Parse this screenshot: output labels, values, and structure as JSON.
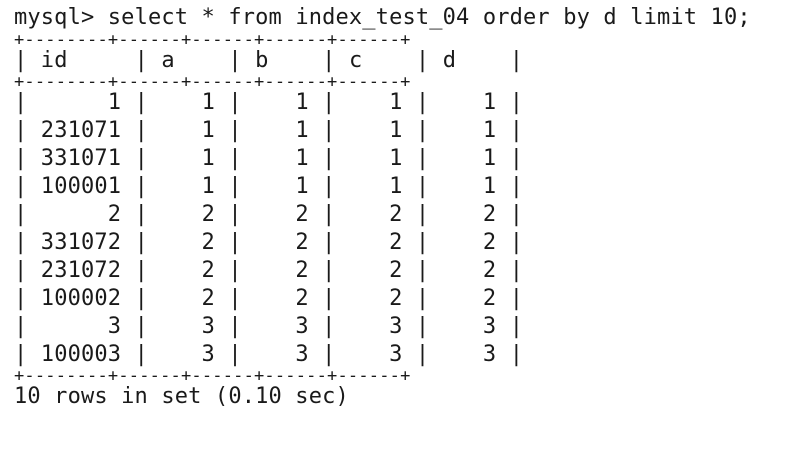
{
  "terminal": {
    "prompt": "mysql> ",
    "command": "select * from index_test_04 order by d limit 10;",
    "border": "+--------+------+------+------+------+",
    "columns": [
      "id",
      "a",
      "b",
      "c",
      "d"
    ],
    "rows": [
      [
        "1",
        "1",
        "1",
        "1",
        "1"
      ],
      [
        "231071",
        "1",
        "1",
        "1",
        "1"
      ],
      [
        "331071",
        "1",
        "1",
        "1",
        "1"
      ],
      [
        "100001",
        "1",
        "1",
        "1",
        "1"
      ],
      [
        "2",
        "2",
        "2",
        "2",
        "2"
      ],
      [
        "331072",
        "2",
        "2",
        "2",
        "2"
      ],
      [
        "231072",
        "2",
        "2",
        "2",
        "2"
      ],
      [
        "100002",
        "2",
        "2",
        "2",
        "2"
      ],
      [
        "3",
        "3",
        "3",
        "3",
        "3"
      ],
      [
        "100003",
        "3",
        "3",
        "3",
        "3"
      ]
    ],
    "footer": "10 rows in set (0.10 sec)"
  }
}
